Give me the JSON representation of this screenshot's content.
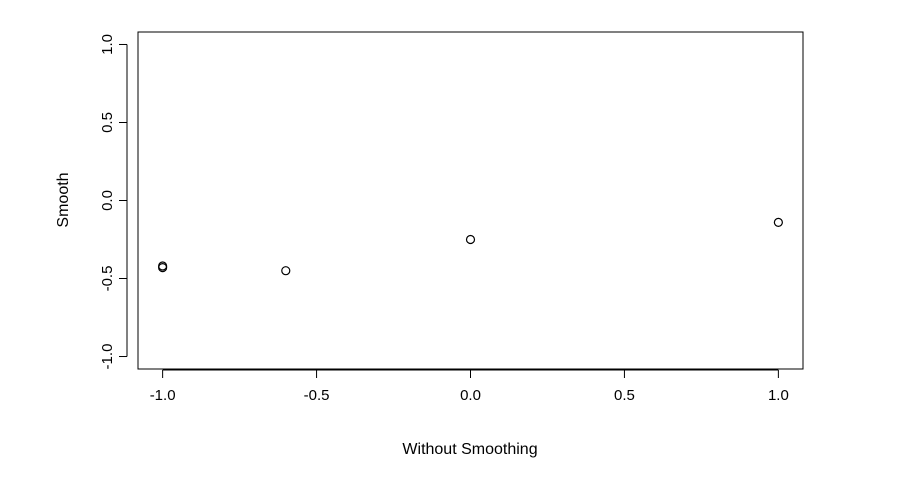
{
  "chart_data": {
    "type": "scatter",
    "title": "",
    "xlabel": "Without Smoothing",
    "ylabel": "Smooth",
    "xlim": [
      -1.08,
      1.08
    ],
    "ylim": [
      -1.08,
      1.08
    ],
    "xticks": [
      -1.0,
      -0.5,
      0.0,
      0.5,
      1.0
    ],
    "xtick_labels": [
      "-1.0",
      "-0.5",
      "0.0",
      "0.5",
      "1.0"
    ],
    "yticks": [
      -1.0,
      -0.5,
      0.0,
      0.5,
      1.0
    ],
    "ytick_labels": [
      "-1.0",
      "-0.5",
      "0.0",
      "0.5",
      "1.0"
    ],
    "grid": false,
    "legend": "none",
    "marker": "open-circle",
    "series": [
      {
        "points": [
          {
            "x": -1.0,
            "y": -0.43
          },
          {
            "x": -1.0,
            "y": -0.42
          },
          {
            "x": -0.6,
            "y": -0.45
          },
          {
            "x": 0.0,
            "y": -0.25
          },
          {
            "x": 1.0,
            "y": -0.14
          }
        ]
      }
    ]
  }
}
